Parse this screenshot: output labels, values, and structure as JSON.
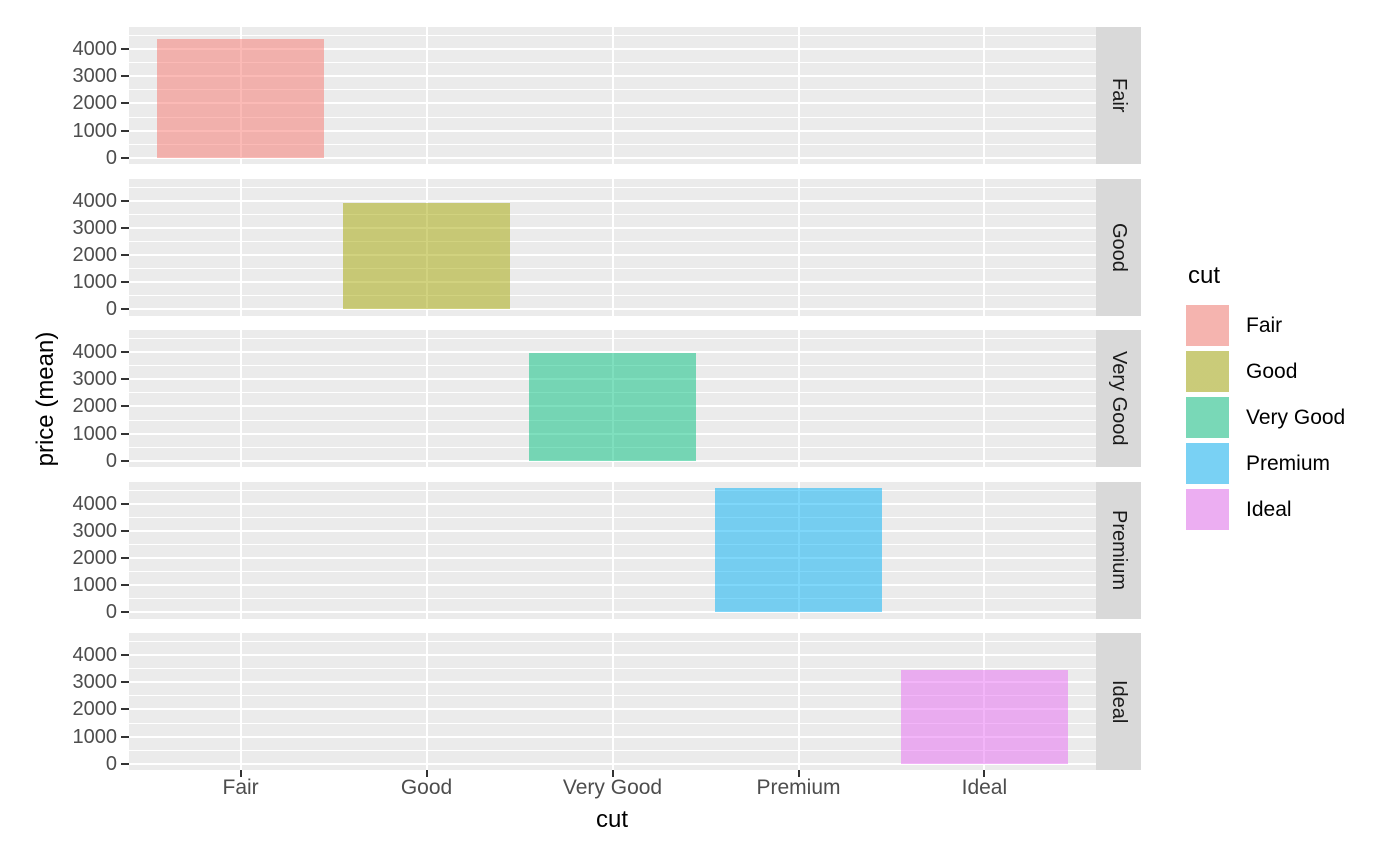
{
  "chart_data": {
    "type": "bar",
    "title": "",
    "xlabel": "cut",
    "ylabel": "price (mean)",
    "categories": [
      "Fair",
      "Good",
      "Very Good",
      "Premium",
      "Ideal"
    ],
    "values": [
      4358.76,
      3928.86,
      3981.76,
      4584.26,
      3457.54
    ],
    "facets": [
      "Fair",
      "Good",
      "Very Good",
      "Premium",
      "Ideal"
    ],
    "facet_layout": "rows-right-strips",
    "y_major_ticks": [
      0,
      1000,
      2000,
      3000,
      4000
    ],
    "y_minor_ticks": [
      500,
      1500,
      2500,
      3500,
      4500
    ],
    "ylim": [
      -229,
      4814
    ],
    "grid": true,
    "bar_rel_width": 0.9,
    "fill_alpha": 0.5,
    "legend_position": "right",
    "legend": {
      "title": "cut",
      "entries": [
        {
          "label": "Fair",
          "color": "#F8766D"
        },
        {
          "label": "Good",
          "color": "#A3A500"
        },
        {
          "label": "Very Good",
          "color": "#00BF7D"
        },
        {
          "label": "Premium",
          "color": "#00B0F6"
        },
        {
          "label": "Ideal",
          "color": "#E76BF3"
        }
      ]
    },
    "colors": {
      "figure_bg": "#FFFFFF",
      "panel_bg": "#EBEBEB",
      "strip_bg": "#D9D9D9",
      "gridline": "#FFFFFF",
      "axis_text": "#4D4D4D",
      "axis_title": "#000000",
      "strip_text": "#1A1A1A",
      "tick_mark": "#333333",
      "legend_key_bg": "#F2F2F2"
    }
  }
}
